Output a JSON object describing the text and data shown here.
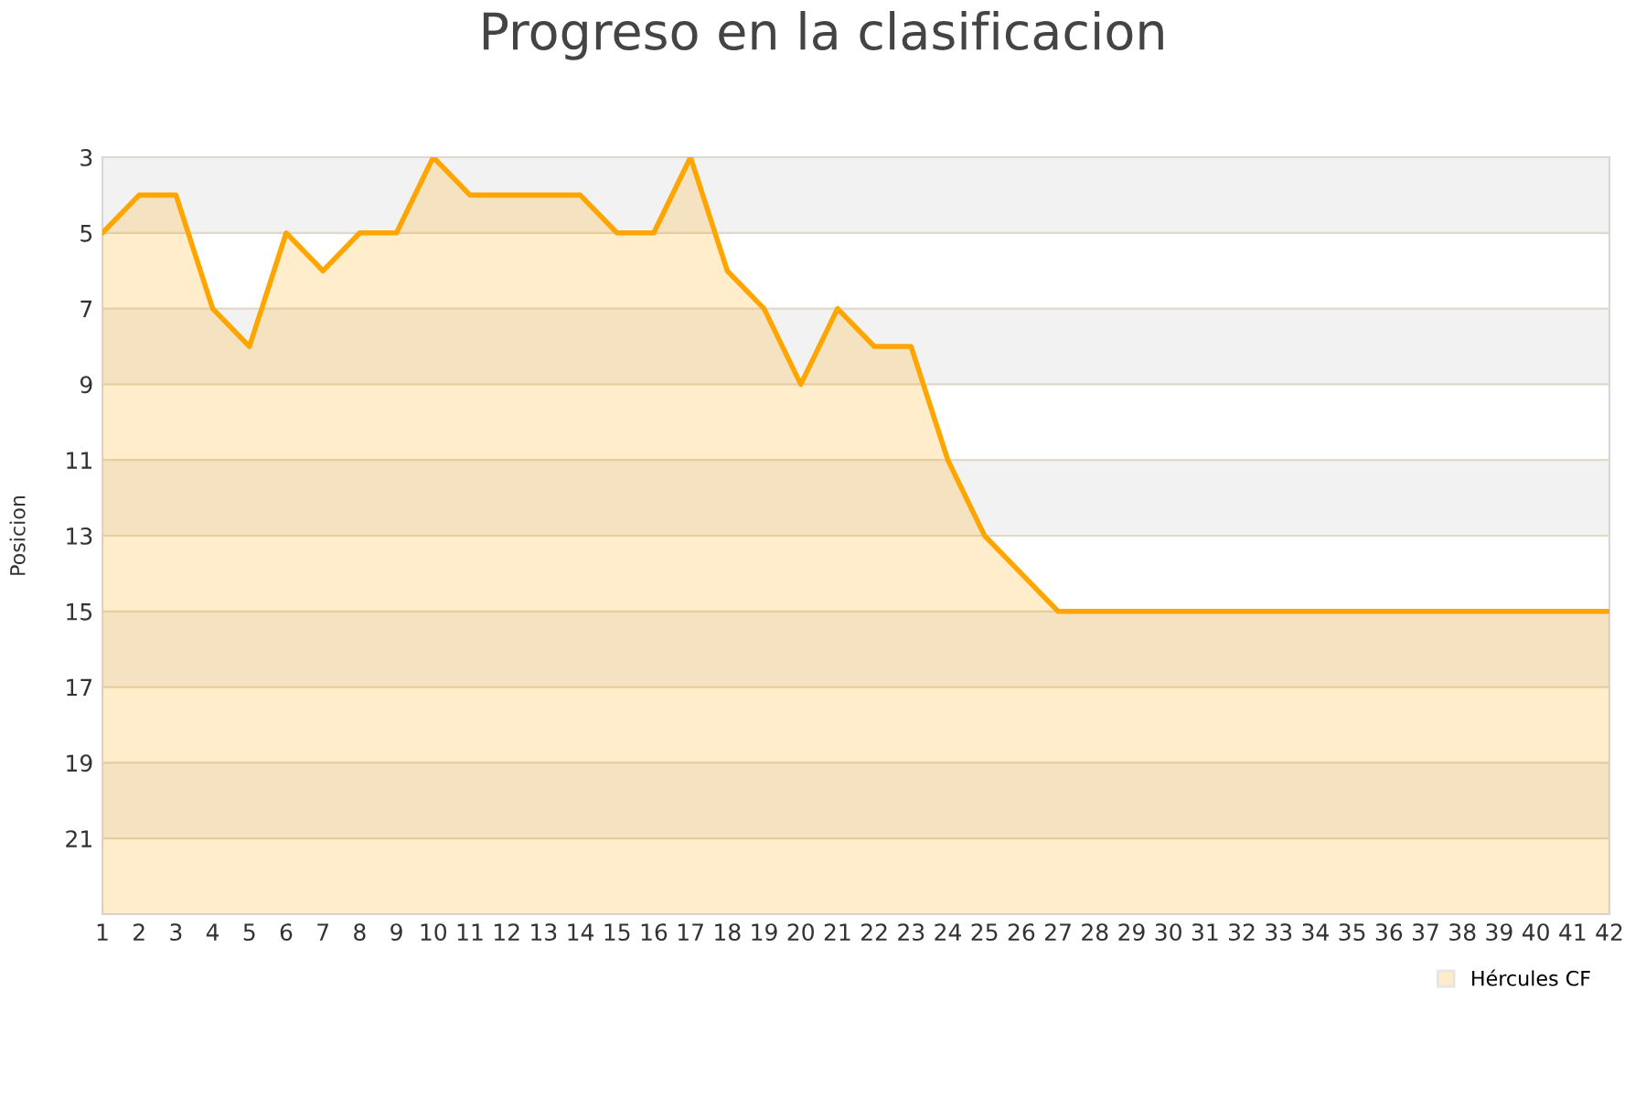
{
  "chart_data": {
    "type": "area",
    "title": "Progreso en la clasificacion",
    "ylabel": "Posicion",
    "x": [
      1,
      2,
      3,
      4,
      5,
      6,
      7,
      8,
      9,
      10,
      11,
      12,
      13,
      14,
      15,
      16,
      17,
      18,
      19,
      20,
      21,
      22,
      23,
      24,
      25,
      26,
      27,
      28,
      29,
      30,
      31,
      32,
      33,
      34,
      35,
      36,
      37,
      38,
      39,
      40,
      41,
      42
    ],
    "series": [
      {
        "name": "Hércules CF",
        "color": "#ffa500",
        "values": [
          5,
          4,
          4,
          7,
          8,
          5,
          6,
          5,
          5,
          3,
          4,
          4,
          4,
          4,
          5,
          5,
          3,
          6,
          7,
          9,
          7,
          8,
          8,
          11,
          13,
          14,
          15,
          15,
          15,
          15,
          15,
          15,
          15,
          15,
          15,
          15,
          15,
          15,
          15,
          15,
          15,
          15
        ]
      }
    ],
    "xlim": [
      1,
      42
    ],
    "xticks": [
      1,
      2,
      3,
      4,
      5,
      6,
      7,
      8,
      9,
      10,
      11,
      12,
      13,
      14,
      15,
      16,
      17,
      18,
      19,
      20,
      21,
      22,
      23,
      24,
      25,
      26,
      27,
      28,
      29,
      30,
      31,
      32,
      33,
      34,
      35,
      36,
      37,
      38,
      39,
      40,
      41,
      42
    ],
    "ylim": [
      23,
      3
    ],
    "yticks": [
      3,
      5,
      7,
      9,
      11,
      13,
      15,
      17,
      19,
      21
    ],
    "bands": [
      {
        "axis": "y",
        "from": 3,
        "to": 5,
        "color": "#f2f2f2"
      },
      {
        "axis": "y",
        "from": 7,
        "to": 9,
        "color": "#f2f2f2"
      },
      {
        "axis": "y",
        "from": 11,
        "to": 13,
        "color": "#f2f2f2"
      },
      {
        "axis": "y",
        "from": 15,
        "to": 17,
        "color": "#f2f2f2"
      },
      {
        "axis": "y",
        "from": 19,
        "to": 21,
        "color": "#f2f2f2"
      }
    ],
    "grid": "y",
    "legend": "bottom right"
  }
}
